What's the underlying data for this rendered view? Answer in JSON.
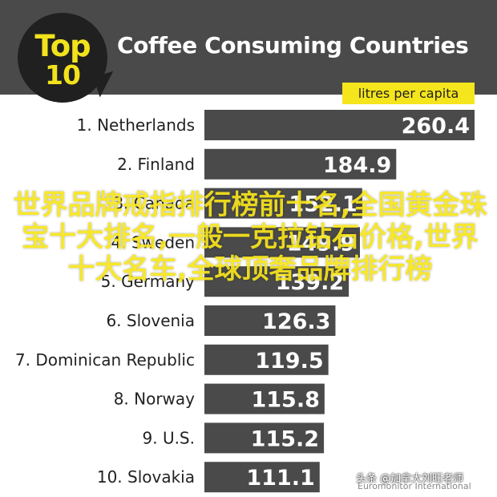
{
  "header": {
    "badge_top": "Top",
    "badge_number": "10",
    "title": "Coffee Consuming Countries",
    "unit": "litres per capita"
  },
  "colors": {
    "header_bg": "#4a4a4a",
    "bar": "#4a4a4a",
    "accent": "#f5e51c",
    "label_text": "#222222"
  },
  "chart_data": {
    "type": "bar",
    "orientation": "horizontal",
    "title": "Coffee Consuming Countries",
    "unit": "litres per capita",
    "categories": [
      "1. Netherlands",
      "2. Finland",
      "3. Canada",
      "4. Sweden",
      "5. Germany",
      "6. Slovenia",
      "7. Dominican Republic",
      "8. Norway",
      "9. U.S.",
      "10. Slovakia"
    ],
    "values": [
      260.4,
      184.9,
      152.1,
      149.9,
      139.2,
      126.3,
      119.5,
      115.8,
      115.2,
      111.1
    ],
    "value_labels": [
      "260.4",
      "184.9",
      "152.1",
      "149.9",
      "139.2",
      "126.3",
      "119.5",
      "115.8",
      "115.2",
      "111.1"
    ],
    "xlim": [
      0,
      260.4
    ],
    "grid": false,
    "legend": "none"
  },
  "overlay": {
    "text": "世界品牌戒指排行榜前十名,全国黄金珠宝十大排名,一般一克拉钻石价格,世界十大名车,全球顶奢品牌排行榜"
  },
  "watermark": {
    "author": "头条 @加拿大刘旺老师",
    "source": "Euromonitor International"
  }
}
